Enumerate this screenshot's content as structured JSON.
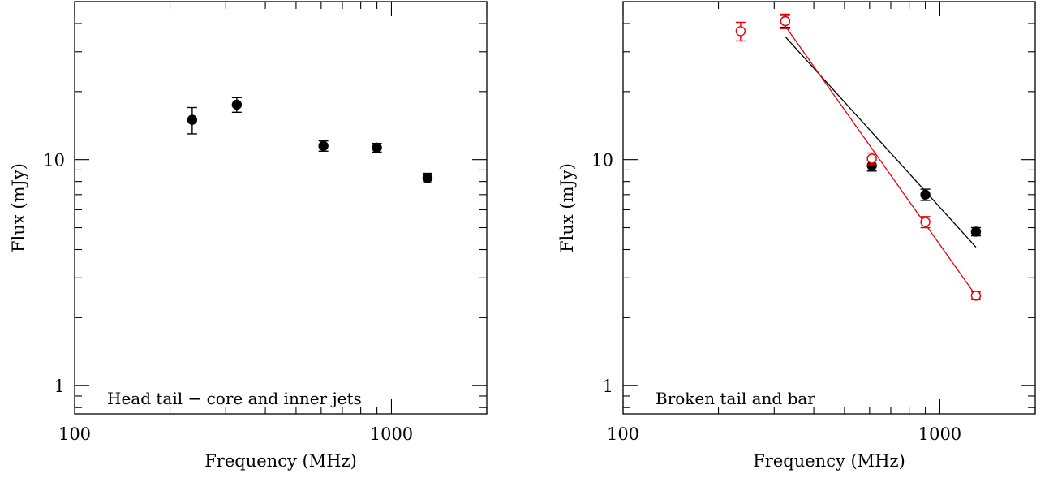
{
  "chart_data": [
    {
      "type": "scatter",
      "xlabel": "Frequency (MHz)",
      "ylabel": "Flux (mJy)",
      "xscale": "log",
      "yscale": "log",
      "xlim": [
        100,
        2000
      ],
      "ylim": [
        0.75,
        50
      ],
      "xticks": [
        {
          "value": 100,
          "label": "100"
        },
        {
          "value": 1000,
          "label": "1000"
        }
      ],
      "yticks": [
        {
          "value": 1,
          "label": "1"
        },
        {
          "value": 10,
          "label": "10"
        }
      ],
      "annotation": "Head tail − core and inner jets",
      "series": [
        {
          "marker": "filled-circle",
          "color": "#000000",
          "points": [
            {
              "x": 235,
              "y": 15.0,
              "err": 2.0
            },
            {
              "x": 325,
              "y": 17.5,
              "err": 1.3
            },
            {
              "x": 610,
              "y": 11.5,
              "err": 0.6
            },
            {
              "x": 900,
              "y": 11.3,
              "err": 0.5
            },
            {
              "x": 1300,
              "y": 8.3,
              "err": 0.4
            }
          ]
        }
      ],
      "lines": []
    },
    {
      "type": "scatter",
      "xlabel": "Frequency (MHz)",
      "ylabel": "Flux (mJy)",
      "xscale": "log",
      "yscale": "log",
      "xlim": [
        100,
        2000
      ],
      "ylim": [
        0.75,
        50
      ],
      "xticks": [
        {
          "value": 100,
          "label": "100"
        },
        {
          "value": 1000,
          "label": "1000"
        }
      ],
      "yticks": [
        {
          "value": 1,
          "label": "1"
        },
        {
          "value": 10,
          "label": "10"
        }
      ],
      "annotation": "Broken tail and bar",
      "series": [
        {
          "marker": "filled-circle",
          "color": "#000000",
          "points": [
            {
              "x": 325,
              "y": 41.0,
              "err": 2.5
            },
            {
              "x": 610,
              "y": 9.4,
              "err": 0.5
            },
            {
              "x": 900,
              "y": 7.0,
              "err": 0.4
            },
            {
              "x": 1300,
              "y": 4.8,
              "err": 0.2
            }
          ]
        },
        {
          "marker": "open-circle",
          "color": "#e8000b",
          "points": [
            {
              "x": 235,
              "y": 37.0,
              "err": 3.5
            },
            {
              "x": 325,
              "y": 41.0,
              "err": 3.0
            },
            {
              "x": 610,
              "y": 10.1,
              "err": 0.6
            },
            {
              "x": 900,
              "y": 5.3,
              "err": 0.3
            },
            {
              "x": 1300,
              "y": 2.5,
              "err": 0.1
            }
          ]
        }
      ],
      "lines": [
        {
          "color": "#000000",
          "x": [
            325,
            1300
          ],
          "y": [
            35.0,
            4.1
          ]
        },
        {
          "color": "#e8000b",
          "x": [
            325,
            1300
          ],
          "y": [
            39.0,
            2.5
          ]
        }
      ]
    }
  ]
}
